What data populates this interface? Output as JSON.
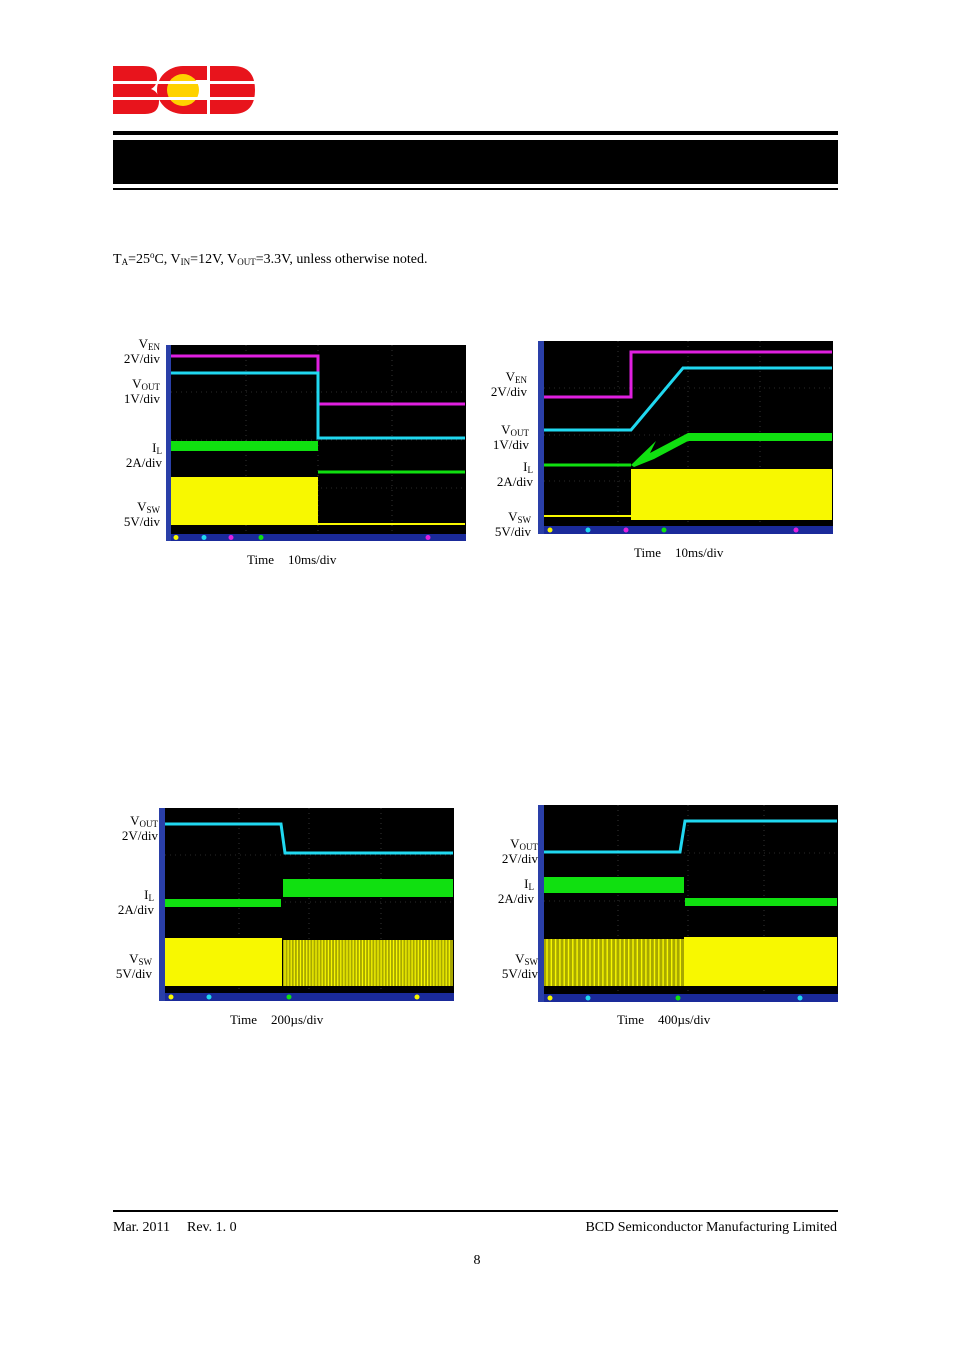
{
  "header": {
    "logo_text": "BCD",
    "logo_colors": {
      "letters": "#e8141c",
      "dot": "#ffd200"
    }
  },
  "conditions": {
    "prefix": "T",
    "t_sub": "A",
    "eq1": "=25",
    "deg": "o",
    "c_and_vin": "C, V",
    "vin_sub": "IN",
    "eq2": "=12V, V",
    "vout_sub": "OUT",
    "eq3": "=3.3V, unless otherwise noted."
  },
  "scopes": [
    {
      "id": "scope1",
      "channels": [
        {
          "main": "V",
          "sub": "EN",
          "scale": "2V/div"
        },
        {
          "main": "V",
          "sub": "OUT",
          "scale": "1V/div"
        },
        {
          "main": "I",
          "sub": "L",
          "scale": "2A/div"
        },
        {
          "main": "V",
          "sub": "SW",
          "scale": "5V/div"
        }
      ],
      "time_label": "Time",
      "time_scale": "10ms/div"
    },
    {
      "id": "scope2",
      "channels": [
        {
          "main": "V",
          "sub": "EN",
          "scale": "2V/div"
        },
        {
          "main": "V",
          "sub": "OUT",
          "scale": "1V/div"
        },
        {
          "main": "I",
          "sub": "L",
          "scale": "2A/div"
        },
        {
          "main": "V",
          "sub": "SW",
          "scale": "5V/div"
        }
      ],
      "time_label": "Time",
      "time_scale": "10ms/div"
    },
    {
      "id": "scope3",
      "channels": [
        {
          "main": "V",
          "sub": "OUT",
          "scale": "2V/div"
        },
        {
          "main": "I",
          "sub": "L",
          "scale": "2A/div"
        },
        {
          "main": "V",
          "sub": "SW",
          "scale": "5V/div"
        }
      ],
      "time_label": "Time",
      "time_scale": "200µs/div"
    },
    {
      "id": "scope4",
      "channels": [
        {
          "main": "V",
          "sub": "OUT",
          "scale": "2V/div"
        },
        {
          "main": "I",
          "sub": "L",
          "scale": "2A/div"
        },
        {
          "main": "V",
          "sub": "SW",
          "scale": "5V/div"
        }
      ],
      "time_label": "Time",
      "time_scale": "400µs/div"
    }
  ],
  "trace_colors": {
    "ven": "#e020e0",
    "vout": "#20d8f0",
    "il": "#10e010",
    "vsw": "#f8f800",
    "screen": "#000000"
  },
  "footer": {
    "date": "Mar. 2011",
    "rev": "Rev. 1. 0",
    "company": "BCD Semiconductor Manufacturing Limited",
    "page_number": "8"
  }
}
